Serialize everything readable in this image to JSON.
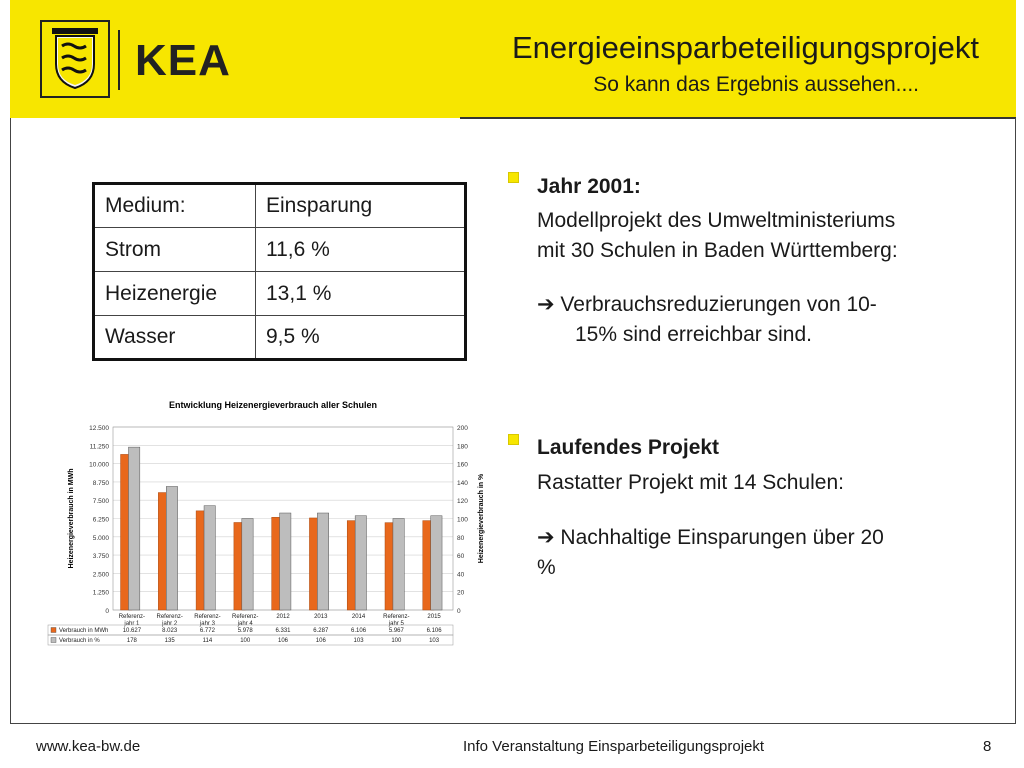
{
  "header": {
    "logo_text": "KEA",
    "title": "Energieeinsparbeteiligungsprojekt",
    "subtitle": "So kann das Ergebnis aussehen...."
  },
  "table": {
    "headers": [
      "Medium:",
      "Einsparung"
    ],
    "rows": [
      [
        "Strom",
        "11,6 %"
      ],
      [
        "Heizenergie",
        "13,1 %"
      ],
      [
        "Wasser",
        "9,5 %"
      ]
    ]
  },
  "right": {
    "b1_title": "Jahr 2001:",
    "b1_line1": "Modellprojekt des Umweltministeriums",
    "b1_line2": "mit 30 Schulen in Baden Württemberg:",
    "b1_arrow1": "➔ Verbrauchsreduzierungen von 10-",
    "b1_arrow2": "15% sind erreichbar sind.",
    "b2_title": "Laufendes Projekt",
    "b2_line1": "Rastatter Projekt mit 14 Schulen:",
    "b2_arrow1": "➔ Nachhaltige Einsparungen über 20",
    "b2_arrow2": "%"
  },
  "footer": {
    "url": "www.kea-bw.de",
    "center": "Info Veranstaltung Einsparbeteiligungsprojekt",
    "page": "8"
  },
  "colors": {
    "header_yellow": "#f7e600",
    "bar_orange": "#e8681c",
    "bar_gray": "#bdbdbd"
  },
  "chart_data": {
    "type": "bar",
    "title": "Entwicklung Heizenergieverbrauch aller Schulen",
    "ylabel": "Heizenergieverbrauch in MWh",
    "y2label": "Heizenergieverbrauch in %",
    "ylim": [
      0,
      12500
    ],
    "y2lim": [
      0,
      200
    ],
    "yticks": [
      "0",
      "1.250",
      "2.500",
      "3.750",
      "5.000",
      "6.250",
      "7.500",
      "8.750",
      "10.000",
      "11.250",
      "12.500"
    ],
    "y2ticks": [
      "0",
      "20",
      "40",
      "60",
      "80",
      "100",
      "120",
      "140",
      "160",
      "180",
      "200"
    ],
    "categories": [
      [
        "Referenz-",
        "jahr 1"
      ],
      [
        "Referenz-",
        "jahr 2"
      ],
      [
        "Referenz-",
        "jahr 3"
      ],
      [
        "Referenz-",
        "jahr 4"
      ],
      [
        "2012"
      ],
      [
        "2013"
      ],
      [
        "2014"
      ],
      [
        "Referenz-",
        "jahr 5"
      ],
      [
        "2015"
      ]
    ],
    "series": [
      {
        "name": "Verbrauch in MWh",
        "axis": "left",
        "values": [
          10627,
          8023,
          6772,
          5978,
          6331,
          6287,
          6106,
          5967,
          6106
        ],
        "labels": [
          "10.627",
          "8.023",
          "6.772",
          "5.978",
          "6.331",
          "6.287",
          "6.106",
          "5.967",
          "6.106"
        ]
      },
      {
        "name": "Verbrauch in %",
        "axis": "right",
        "values": [
          178,
          135,
          114,
          100,
          106,
          106,
          103,
          100,
          103
        ],
        "labels": [
          "178",
          "135",
          "114",
          "100",
          "106",
          "106",
          "103",
          "100",
          "103"
        ]
      }
    ],
    "grid": true,
    "legend": "table-below"
  }
}
